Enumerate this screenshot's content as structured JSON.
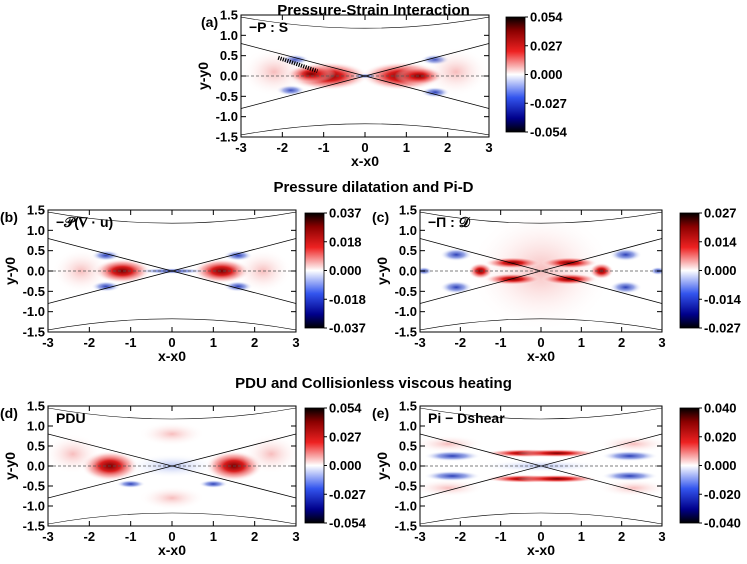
{
  "section_titles": {
    "top": "Pressure-Strain Interaction",
    "middle": "Pressure dilatation and Pi-D",
    "bottom": "PDU and Collisionless viscous heating"
  },
  "colors": {
    "positive": "#8b0000",
    "negative": "#00008b",
    "zero": "#ffffff",
    "separatrix": "#000000"
  },
  "chart_data": [
    {
      "type": "heatmap",
      "panel": "(a)",
      "label": "−P : S",
      "xlabel": "x-x0",
      "ylabel": "y-y0",
      "xlim": [
        -3,
        3
      ],
      "ylim": [
        -1.5,
        1.5
      ],
      "xticks": [
        "-3",
        "-2",
        "-1",
        "0",
        "1",
        "2",
        "3"
      ],
      "yticks": [
        "1.5",
        "1.0",
        "0.5",
        "0.0",
        "-0.5",
        "-1.0",
        "-1.5"
      ],
      "colorbar": {
        "min": -0.054,
        "max": 0.054,
        "ticks": [
          "0.054",
          "0.027",
          "0.000",
          "-0.027",
          "-0.054"
        ]
      }
    },
    {
      "type": "heatmap",
      "panel": "(b)",
      "label": "−𝒫(∇ · u)",
      "xlabel": "x-x0",
      "ylabel": "y-y0",
      "xlim": [
        -3,
        3
      ],
      "ylim": [
        -1.5,
        1.5
      ],
      "xticks": [
        "-3",
        "-2",
        "-1",
        "0",
        "1",
        "2",
        "3"
      ],
      "yticks": [
        "1.5",
        "1.0",
        "0.5",
        "0.0",
        "-0.5",
        "-1.0",
        "-1.5"
      ],
      "colorbar": {
        "min": -0.037,
        "max": 0.037,
        "ticks": [
          "0.037",
          "0.018",
          "0.000",
          "-0.018",
          "-0.037"
        ]
      }
    },
    {
      "type": "heatmap",
      "panel": "(c)",
      "label": "−Π : 𝒟",
      "xlabel": "x-x0",
      "ylabel": "y-y0",
      "xlim": [
        -3,
        3
      ],
      "ylim": [
        -1.5,
        1.5
      ],
      "xticks": [
        "-3",
        "-2",
        "-1",
        "0",
        "1",
        "2",
        "3"
      ],
      "yticks": [
        "1.5",
        "1.0",
        "0.5",
        "0.0",
        "-0.5",
        "-1.0",
        "-1.5"
      ],
      "colorbar": {
        "min": -0.027,
        "max": 0.027,
        "ticks": [
          "0.027",
          "0.014",
          "0.000",
          "-0.014",
          "-0.027"
        ]
      }
    },
    {
      "type": "heatmap",
      "panel": "(d)",
      "label": "PDU",
      "xlabel": "x-x0",
      "ylabel": "y-y0",
      "xlim": [
        -3,
        3
      ],
      "ylim": [
        -1.5,
        1.5
      ],
      "xticks": [
        "-3",
        "-2",
        "-1",
        "0",
        "1",
        "2",
        "3"
      ],
      "yticks": [
        "1.5",
        "1.0",
        "0.5",
        "0.0",
        "-0.5",
        "-1.0",
        "-1.5"
      ],
      "colorbar": {
        "min": -0.054,
        "max": 0.054,
        "ticks": [
          "0.054",
          "0.027",
          "0.000",
          "-0.027",
          "-0.054"
        ]
      }
    },
    {
      "type": "heatmap",
      "panel": "(e)",
      "label": "Pi − Dshear",
      "xlabel": "x-x0",
      "ylabel": "y-y0",
      "xlim": [
        -3,
        3
      ],
      "ylim": [
        -1.5,
        1.5
      ],
      "xticks": [
        "-3",
        "-2",
        "-1",
        "0",
        "1",
        "2",
        "3"
      ],
      "yticks": [
        "1.5",
        "1.0",
        "0.5",
        "0.0",
        "-0.5",
        "-1.0",
        "-1.5"
      ],
      "colorbar": {
        "min": -0.04,
        "max": 0.04,
        "ticks": [
          "0.040",
          "0.020",
          "0.000",
          "-0.020",
          "-0.040"
        ]
      }
    }
  ]
}
